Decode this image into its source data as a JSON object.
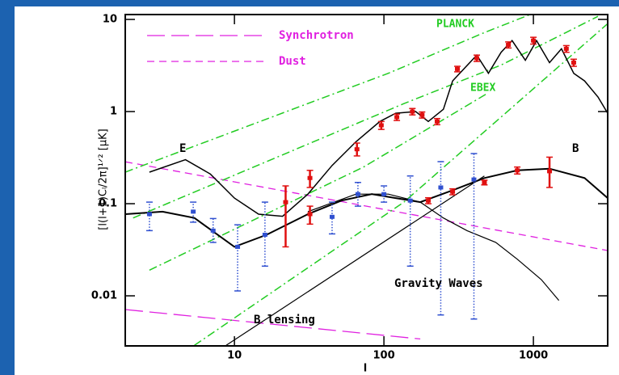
{
  "chart_data": {
    "type": "line",
    "x_label": "l",
    "y_label": "[l(l+1)Cₗ/2π]¹ᐟ² [μK]",
    "annotations": [
      "PLANCK",
      "EBEX",
      "E",
      "B",
      "Gravity Waves",
      "B lensing"
    ],
    "xscale": "log",
    "yscale": "log",
    "xlim": [
      1.86,
      3140
    ],
    "ylim": [
      0.00286,
      11.3
    ],
    "xticks": [
      10,
      100,
      1000
    ],
    "yticks": [
      0.01,
      0.1,
      1,
      10
    ],
    "legend": "upper left",
    "series": [
      {
        "name": "Synchrotron",
        "color": "#e020e0",
        "dash": "long",
        "width": 1.3,
        "x": [
          1.86,
          175
        ],
        "values": [
          0.0071,
          0.0034
        ]
      },
      {
        "name": "Dust",
        "color": "#e020e0",
        "dash": "short",
        "width": 1.3,
        "x": [
          1.86,
          3140
        ],
        "values": [
          0.285,
          0.031
        ]
      },
      {
        "color": "#22cc22",
        "dash": "dashdot",
        "width": 1.5,
        "x": [
          1.86,
          107,
          470,
          950
        ],
        "values": [
          0.22,
          2.6,
          7.2,
          11.3
        ]
      },
      {
        "color": "#22cc22",
        "dash": "dashdot",
        "width": 1.5,
        "x": [
          2.1,
          136,
          608,
          1650,
          2704
        ],
        "values": [
          0.07,
          1.22,
          3.2,
          7.2,
          10.8
        ]
      },
      {
        "color": "#22cc22",
        "dash": "dashdot",
        "width": 1.5,
        "x": [
          2.7,
          73,
          500
        ],
        "values": [
          0.019,
          0.25,
          1.6
        ]
      },
      {
        "color": "#22cc22",
        "dash": "dashdot",
        "width": 1.5,
        "x": [
          5.4,
          136,
          1650,
          3140
        ],
        "values": [
          0.0029,
          0.104,
          3.6,
          9
        ]
      },
      {
        "color": "#000000",
        "dash": "solid",
        "width": 1.5,
        "x": [
          2.7,
          4.7,
          6.9,
          10,
          14.5,
          21,
          31,
          45,
          65,
          94,
          120,
          163,
          198,
          250,
          288,
          418,
          500,
          608,
          720,
          883,
          1050,
          1282,
          1540,
          1862,
          2200,
          2704,
          3140
        ],
        "values": [
          0.22,
          0.3,
          0.21,
          0.115,
          0.077,
          0.073,
          0.127,
          0.26,
          0.47,
          0.78,
          0.96,
          1.0,
          0.78,
          1.06,
          2.15,
          4.1,
          2.6,
          4.4,
          5.9,
          3.6,
          5.9,
          3.4,
          4.8,
          2.6,
          2.15,
          1.44,
          0.96
        ]
      },
      {
        "color": "#000000",
        "dash": "solid",
        "width": 2,
        "x": [
          1.86,
          3.3,
          5.4,
          10,
          16.4,
          31,
          52,
          83,
          120,
          175,
          288,
          470,
          780,
          1282,
          2200,
          3140
        ],
        "values": [
          0.077,
          0.082,
          0.07,
          0.034,
          0.046,
          0.077,
          0.108,
          0.127,
          0.115,
          0.104,
          0.14,
          0.19,
          0.23,
          0.24,
          0.19,
          0.115
        ]
      },
      {
        "color": "#000000",
        "dash": "solid",
        "width": 1.2,
        "x": [
          31,
          65,
          107,
          175,
          250,
          360,
          560,
          780,
          1130,
          1480
        ],
        "values": [
          0.082,
          0.127,
          0.127,
          0.104,
          0.07,
          0.051,
          0.038,
          0.025,
          0.015,
          0.0089
        ]
      },
      {
        "color": "#000000",
        "dash": "solid",
        "width": 1.2,
        "x": [
          8.8,
          470
        ],
        "values": [
          0.0029,
          0.2
        ]
      }
    ],
    "errorbars": [
      {
        "color": "#e01010",
        "style": "solid",
        "x": [
          22,
          32,
          32,
          66,
          96,
          122,
          155,
          180,
          227,
          310,
          418,
          680,
          1000,
          1660,
          1860,
          198,
          288,
          470,
          780,
          1282
        ],
        "values": [
          0.104,
          0.19,
          0.077,
          0.39,
          0.71,
          0.87,
          1.0,
          0.92,
          0.78,
          2.9,
          3.8,
          5.3,
          5.9,
          4.8,
          3.4,
          0.108,
          0.135,
          0.17,
          0.23,
          0.225
        ],
        "low": [
          0.034,
          0.15,
          0.06,
          0.33,
          0.64,
          0.8,
          0.92,
          0.85,
          0.72,
          2.7,
          3.5,
          4.9,
          5.4,
          4.4,
          3.1,
          0.1,
          0.125,
          0.16,
          0.21,
          0.15
        ],
        "high": [
          0.156,
          0.23,
          0.094,
          0.455,
          0.78,
          0.94,
          1.08,
          0.99,
          0.84,
          3.1,
          4.1,
          5.7,
          6.4,
          5.2,
          3.7,
          0.116,
          0.145,
          0.18,
          0.25,
          0.32
        ]
      },
      {
        "color": "#3050d0",
        "style": "dotted",
        "x": [
          2.7,
          5.3,
          7.2,
          10.5,
          16,
          45,
          67,
          100,
          150,
          240,
          400
        ],
        "values": [
          0.077,
          0.082,
          0.051,
          0.034,
          0.046,
          0.072,
          0.127,
          0.127,
          0.108,
          0.15,
          0.183
        ],
        "low": [
          0.051,
          0.063,
          0.038,
          0.0113,
          0.021,
          0.047,
          0.094,
          0.104,
          0.021,
          0.0062,
          0.0056
        ],
        "high": [
          0.104,
          0.104,
          0.069,
          0.059,
          0.104,
          0.104,
          0.17,
          0.156,
          0.2,
          0.286,
          0.35
        ]
      }
    ]
  }
}
